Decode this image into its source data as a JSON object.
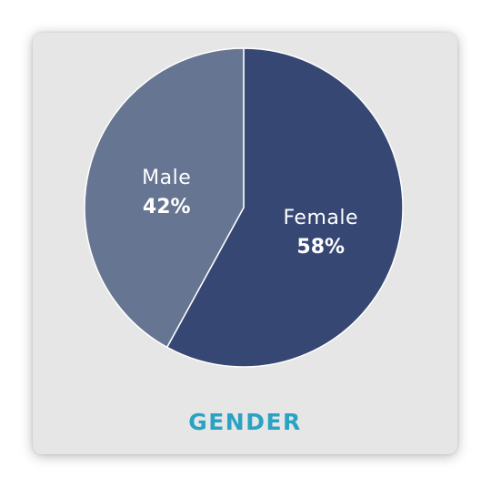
{
  "chart_data": {
    "type": "pie",
    "title": "GENDER",
    "slices": [
      {
        "label": "Female",
        "value": 58,
        "value_label": "58%",
        "color": "#364773"
      },
      {
        "label": "Male",
        "value": 42,
        "value_label": "42%",
        "color": "#667592"
      }
    ],
    "start": "top",
    "direction": "clockwise"
  },
  "colors": {
    "card_background": "#e6e6e7",
    "title": "#2aa3c3",
    "label_text": "#ffffff",
    "slice_separator": "#ffffff"
  }
}
